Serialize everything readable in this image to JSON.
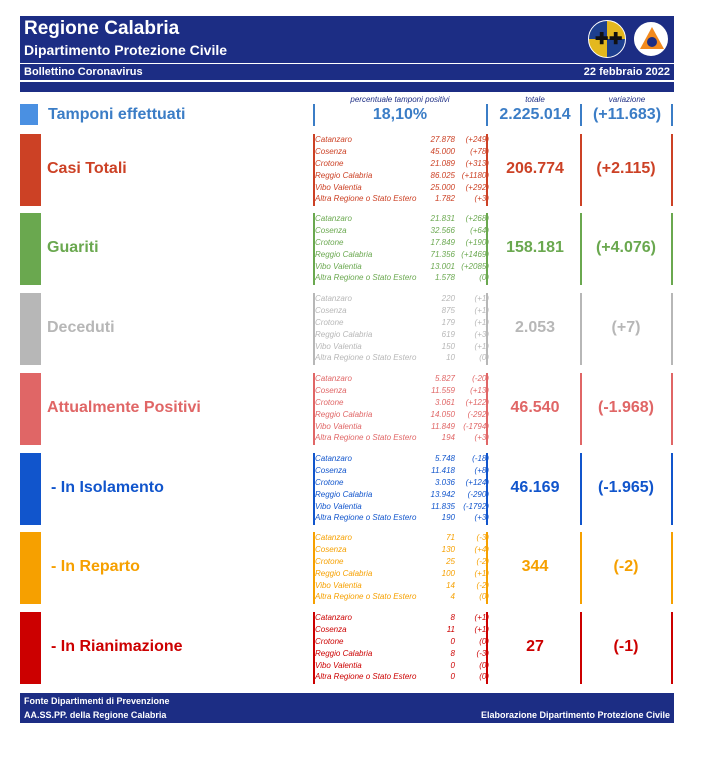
{
  "header": {
    "title": "Regione Calabria",
    "subtitle": "Dipartimento Protezione Civile",
    "bulletin": "Bollettino Coronavirus",
    "date": "22 febbraio 2022"
  },
  "columns": {
    "perc_label": "percentuale tamponi positivi",
    "total_label": "totale",
    "var_label": "variazione"
  },
  "tamponi": {
    "label": "Tamponi effettuati",
    "perc": "18,10%",
    "total": "2.225.014",
    "var": "(+11.683)"
  },
  "colors": {
    "header": "#1c2d84",
    "casi": "#cc4125",
    "guariti": "#6aa84f",
    "deceduti": "#b7b7b7",
    "positivi": "#e06666",
    "isolamento": "#1155cc",
    "reparto": "#f6a000",
    "rianimazione": "#cc0000"
  },
  "sections": [
    {
      "label": "Casi Totali",
      "total": "206.774",
      "var": "(+2.115)",
      "rows": [
        {
          "name": "Catanzaro",
          "value": "27.878",
          "delta": "(+249)"
        },
        {
          "name": "Cosenza",
          "value": "45.000",
          "delta": "(+78)"
        },
        {
          "name": "Crotone",
          "value": "21.089",
          "delta": "(+313)"
        },
        {
          "name": "Reggio Calabria",
          "value": "86.025",
          "delta": "(+1180)"
        },
        {
          "name": "Vibo Valentia",
          "value": "25.000",
          "delta": "(+292)"
        },
        {
          "name": "Altra Regione o Stato Estero",
          "value": "1.782",
          "delta": "(+3)"
        }
      ]
    },
    {
      "label": "Guariti",
      "total": "158.181",
      "var": "(+4.076)",
      "rows": [
        {
          "name": "Catanzaro",
          "value": "21.831",
          "delta": "(+268)"
        },
        {
          "name": "Cosenza",
          "value": "32.566",
          "delta": "(+64)"
        },
        {
          "name": "Crotone",
          "value": "17.849",
          "delta": "(+190)"
        },
        {
          "name": "Reggio Calabria",
          "value": "71.356",
          "delta": "(+1469)"
        },
        {
          "name": "Vibo Valentia",
          "value": "13.001",
          "delta": "(+2085)"
        },
        {
          "name": "Altra Regione o Stato Estero",
          "value": "1.578",
          "delta": "(0)"
        }
      ]
    },
    {
      "label": "Deceduti",
      "total": "2.053",
      "var": "(+7)",
      "rows": [
        {
          "name": "Catanzaro",
          "value": "220",
          "delta": "(+1)"
        },
        {
          "name": "Cosenza",
          "value": "875",
          "delta": "(+1)"
        },
        {
          "name": "Crotone",
          "value": "179",
          "delta": "(+1)"
        },
        {
          "name": "Reggio Calabria",
          "value": "619",
          "delta": "(+3)"
        },
        {
          "name": "Vibo Valentia",
          "value": "150",
          "delta": "(+1)"
        },
        {
          "name": "Altra Regione o Stato Estero",
          "value": "10",
          "delta": "(0)"
        }
      ]
    },
    {
      "label": "Attualmente Positivi",
      "total": "46.540",
      "var": "(-1.968)",
      "rows": [
        {
          "name": "Catanzaro",
          "value": "5.827",
          "delta": "(-20)"
        },
        {
          "name": "Cosenza",
          "value": "11.559",
          "delta": "(+13)"
        },
        {
          "name": "Crotone",
          "value": "3.061",
          "delta": "(+122)"
        },
        {
          "name": "Reggio Calabria",
          "value": "14.050",
          "delta": "(-292)"
        },
        {
          "name": "Vibo Valentia",
          "value": "11.849",
          "delta": "(-1794)"
        },
        {
          "name": "Altra Regione o Stato Estero",
          "value": "194",
          "delta": "(+3)"
        }
      ]
    },
    {
      "label": "- In Isolamento",
      "total": "46.169",
      "var": "(-1.965)",
      "rows": [
        {
          "name": "Catanzaro",
          "value": "5.748",
          "delta": "(-18)"
        },
        {
          "name": "Cosenza",
          "value": "11.418",
          "delta": "(+8)"
        },
        {
          "name": "Crotone",
          "value": "3.036",
          "delta": "(+124)"
        },
        {
          "name": "Reggio Calabria",
          "value": "13.942",
          "delta": "(-290)"
        },
        {
          "name": "Vibo Valentia",
          "value": "11.835",
          "delta": "(-1792)"
        },
        {
          "name": "Altra Regione o Stato Estero",
          "value": "190",
          "delta": "(+3)"
        }
      ]
    },
    {
      "label": "- In Reparto",
      "total": "344",
      "var": "(-2)",
      "rows": [
        {
          "name": "Catanzaro",
          "value": "71",
          "delta": "(-3)"
        },
        {
          "name": "Cosenza",
          "value": "130",
          "delta": "(+4)"
        },
        {
          "name": "Crotone",
          "value": "25",
          "delta": "(-2)"
        },
        {
          "name": "Reggio Calabria",
          "value": "100",
          "delta": "(+1)"
        },
        {
          "name": "Vibo Valentia",
          "value": "14",
          "delta": "(-2)"
        },
        {
          "name": "Altra Regione o Stato Estero",
          "value": "4",
          "delta": "(0)"
        }
      ]
    },
    {
      "label": "- In Rianimazione",
      "total": "27",
      "var": "(-1)",
      "rows": [
        {
          "name": "Catanzaro",
          "value": "8",
          "delta": "(+1)"
        },
        {
          "name": "Cosenza",
          "value": "11",
          "delta": "(+1)"
        },
        {
          "name": "Crotone",
          "value": "0",
          "delta": "(0)"
        },
        {
          "name": "Reggio Calabria",
          "value": "8",
          "delta": "(-3)"
        },
        {
          "name": "Vibo Valentia",
          "value": "0",
          "delta": "(0)"
        },
        {
          "name": "Altra Regione o Stato Estero",
          "value": "0",
          "delta": "(0)"
        }
      ]
    }
  ],
  "footer": {
    "line1": "Fonte Dipartimenti di Prevenzione",
    "line2": "AA.SS.PP.  della Regione Calabria",
    "right": "Elaborazione Dipartimento Protezione Civile"
  }
}
